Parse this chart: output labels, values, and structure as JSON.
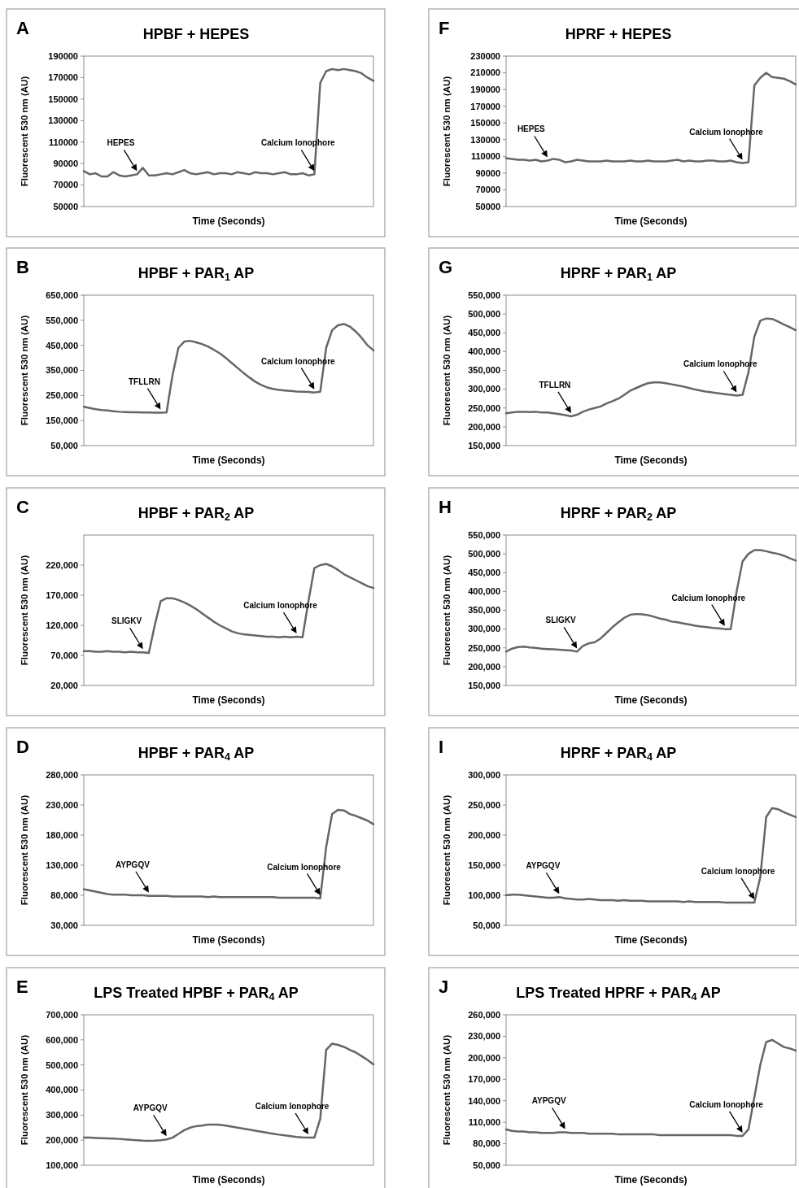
{
  "chart_data": [
    {
      "type": "line",
      "title": "HPBF + HEPES",
      "xlabel": "Time (Seconds)",
      "ylabel": "Fluorescent 530 nm (AU)",
      "annotations": [
        "A",
        "HEPES",
        "Calcium Ionophore"
      ],
      "tick_labels": "y",
      "categories": [
        null,
        null,
        null,
        null,
        null,
        null,
        null,
        null,
        null,
        null,
        null,
        null,
        null,
        null,
        null,
        null,
        null,
        null,
        null,
        null,
        null,
        null,
        null,
        null,
        null,
        null,
        null,
        null,
        null,
        null,
        null,
        null,
        null,
        null,
        null,
        null,
        null,
        null,
        null,
        null,
        null,
        null,
        null,
        null,
        null,
        null,
        null,
        null,
        null,
        null
      ],
      "ylim": [
        50000,
        190000
      ],
      "yticks": [
        50000,
        70000,
        90000,
        110000,
        130000,
        150000,
        170000,
        190000
      ],
      "series": [
        {
          "color": "#666666",
          "values": [
            83000,
            80000,
            81000,
            78000,
            78000,
            82000,
            79000,
            78000,
            79000,
            80000,
            86000,
            79000,
            79000,
            80000,
            81000,
            80000,
            82000,
            84000,
            81000,
            80000,
            81000,
            82000,
            80000,
            81000,
            81000,
            80000,
            82000,
            81000,
            80000,
            82000,
            81000,
            81000,
            80000,
            81000,
            82000,
            80000,
            80000,
            81000,
            79000,
            80000,
            165000,
            176000,
            178000,
            177000,
            178000,
            177000,
            176000,
            174000,
            170000,
            167000
          ]
        }
      ]
    },
    {
      "type": "line",
      "title": "HPBF + PAR$_{1}$ AP",
      "xlabel": "Time (Seconds)",
      "ylabel": "Fluorescent 530 nm (AU)",
      "annotations": [
        "B",
        "TFLLRN",
        "Calcium Ionophore"
      ],
      "tick_labels": "y",
      "categories": [
        null,
        null,
        null,
        null,
        null,
        null,
        null,
        null,
        null,
        null,
        null,
        null,
        null,
        null,
        null,
        null,
        null,
        null,
        null,
        null,
        null,
        null,
        null,
        null,
        null,
        null,
        null,
        null,
        null,
        null,
        null,
        null,
        null,
        null,
        null,
        null,
        null,
        null,
        null,
        null,
        null,
        null,
        null,
        null,
        null,
        null,
        null,
        null,
        null,
        null
      ],
      "ylim": [
        50000,
        650000
      ],
      "yticks": [
        {
          "value": 50000,
          "label": "50,000"
        },
        {
          "value": 150000,
          "label": "150,000"
        },
        {
          "value": 250000,
          "label": "250,000"
        },
        {
          "value": 350000,
          "label": "350,000"
        },
        {
          "value": 450000,
          "label": "450,000"
        },
        {
          "value": 550000,
          "label": "550,000"
        },
        {
          "value": 650000,
          "label": "650,000"
        }
      ],
      "series": [
        {
          "color": "#666666",
          "values": [
            205000,
            200000,
            195000,
            192000,
            190000,
            187000,
            185000,
            184000,
            183000,
            183000,
            182000,
            182000,
            181000,
            181000,
            182000,
            330000,
            440000,
            465000,
            468000,
            462000,
            455000,
            445000,
            432000,
            418000,
            400000,
            380000,
            360000,
            340000,
            322000,
            305000,
            292000,
            282000,
            276000,
            272000,
            270000,
            268000,
            266000,
            265000,
            264000,
            262000,
            265000,
            440000,
            510000,
            530000,
            535000,
            525000,
            505000,
            480000,
            450000,
            430000
          ]
        }
      ]
    },
    {
      "type": "line",
      "title": "HPBF + PAR$_{2}$ AP",
      "xlabel": "Time (Seconds)",
      "ylabel": "Fluorescent 530 nm (AU)",
      "annotations": [
        "C",
        "SLIGKV",
        "Calcium Ionophore"
      ],
      "tick_labels": "y",
      "categories": [
        null,
        null,
        null,
        null,
        null,
        null,
        null,
        null,
        null,
        null,
        null,
        null,
        null,
        null,
        null,
        null,
        null,
        null,
        null,
        null,
        null,
        null,
        null,
        null,
        null,
        null,
        null,
        null,
        null,
        null,
        null,
        null,
        null,
        null,
        null,
        null,
        null,
        null,
        null,
        null,
        null,
        null,
        null,
        null,
        null,
        null,
        null,
        null,
        null,
        null
      ],
      "ylim": [
        20000,
        270000
      ],
      "yticks": [
        {
          "value": 20000,
          "label": "20,000"
        },
        {
          "value": 70000,
          "label": "70,000"
        },
        {
          "value": 120000,
          "label": "120,000"
        },
        {
          "value": 170000,
          "label": "170,000"
        },
        {
          "value": 220000,
          "label": "220,000"
        }
      ],
      "series": [
        {
          "color": "#666666",
          "values": [
            77000,
            77000,
            76000,
            76000,
            77000,
            76000,
            76000,
            75000,
            76000,
            75000,
            75000,
            74000,
            120000,
            160000,
            165000,
            165000,
            162000,
            158000,
            153000,
            147000,
            140000,
            133000,
            126000,
            120000,
            115000,
            110000,
            107000,
            105000,
            104000,
            103000,
            102000,
            101000,
            101000,
            100000,
            101000,
            100000,
            101000,
            100000,
            160000,
            215000,
            220000,
            222000,
            218000,
            212000,
            205000,
            200000,
            195000,
            190000,
            185000,
            182000
          ]
        }
      ]
    },
    {
      "type": "line",
      "title": "HPBF + PAR$_{4}$ AP",
      "xlabel": "Time (Seconds)",
      "ylabel": "Fluorescent 530 nm (AU)",
      "annotations": [
        "D",
        "AYPGQV",
        "Calcium Ionophore"
      ],
      "tick_labels": "y",
      "categories": [
        null,
        null,
        null,
        null,
        null,
        null,
        null,
        null,
        null,
        null,
        null,
        null,
        null,
        null,
        null,
        null,
        null,
        null,
        null,
        null,
        null,
        null,
        null,
        null,
        null,
        null,
        null,
        null,
        null,
        null,
        null,
        null,
        null,
        null,
        null,
        null,
        null,
        null,
        null,
        null,
        null,
        null,
        null,
        null,
        null,
        null,
        null,
        null,
        null,
        null
      ],
      "ylim": [
        30000,
        280000
      ],
      "yticks": [
        {
          "value": 30000,
          "label": "30,000"
        },
        {
          "value": 80000,
          "label": "80,000"
        },
        {
          "value": 130000,
          "label": "130,000"
        },
        {
          "value": 180000,
          "label": "180,000"
        },
        {
          "value": 230000,
          "label": "230,000"
        },
        {
          "value": 280000,
          "label": "280,000"
        }
      ],
      "series": [
        {
          "color": "#666666",
          "values": [
            90000,
            88000,
            86000,
            84000,
            82000,
            81000,
            81000,
            81000,
            80000,
            80000,
            80000,
            79000,
            79000,
            79000,
            79000,
            78000,
            78000,
            78000,
            78000,
            78000,
            78000,
            77000,
            78000,
            77000,
            77000,
            77000,
            77000,
            77000,
            77000,
            77000,
            77000,
            77000,
            77000,
            76000,
            76000,
            76000,
            76000,
            76000,
            76000,
            76000,
            75000,
            160000,
            215000,
            222000,
            221000,
            215000,
            212000,
            208000,
            204000,
            198000
          ]
        }
      ]
    },
    {
      "type": "line",
      "title": "LPS Treated HPBF + PAR$_{4}$ AP",
      "xlabel": "Time (Seconds)",
      "ylabel": "Fluorescent 530 nm (AU)",
      "annotations": [
        "E",
        "AYPGQV",
        "Calcium Ionophore"
      ],
      "tick_labels": "y",
      "categories": [
        null,
        null,
        null,
        null,
        null,
        null,
        null,
        null,
        null,
        null,
        null,
        null,
        null,
        null,
        null,
        null,
        null,
        null,
        null,
        null,
        null,
        null,
        null,
        null,
        null,
        null,
        null,
        null,
        null,
        null,
        null,
        null,
        null,
        null,
        null,
        null,
        null,
        null,
        null,
        null,
        null,
        null,
        null,
        null,
        null,
        null,
        null,
        null,
        null,
        null
      ],
      "ylim": [
        100000,
        700000
      ],
      "yticks": [
        {
          "value": 100000,
          "label": "100,000"
        },
        {
          "value": 200000,
          "label": "200,000"
        },
        {
          "value": 300000,
          "label": "300,000"
        },
        {
          "value": 400000,
          "label": "400,000"
        },
        {
          "value": 500000,
          "label": "500,000"
        },
        {
          "value": 600000,
          "label": "600,000"
        },
        {
          "value": 700000,
          "label": "700,000"
        }
      ],
      "series": [
        {
          "color": "#666666",
          "values": [
            210000,
            210000,
            209000,
            208000,
            207000,
            206000,
            205000,
            203000,
            201000,
            200000,
            198000,
            197000,
            198000,
            200000,
            203000,
            210000,
            225000,
            240000,
            250000,
            256000,
            258000,
            262000,
            262000,
            261000,
            258000,
            254000,
            250000,
            246000,
            242000,
            238000,
            234000,
            230000,
            226000,
            222000,
            219000,
            216000,
            213000,
            211000,
            210000,
            210000,
            285000,
            560000,
            585000,
            580000,
            572000,
            560000,
            550000,
            535000,
            520000,
            502000
          ]
        }
      ]
    },
    {
      "type": "line",
      "title": "HPRF + HEPES",
      "xlabel": "Time (Seconds)",
      "ylabel": "Fluorescent 530 nm (AU)",
      "annotations": [
        "F",
        "HEPES",
        "Calcium Ionophore"
      ],
      "tick_labels": "y",
      "categories": [
        null,
        null,
        null,
        null,
        null,
        null,
        null,
        null,
        null,
        null,
        null,
        null,
        null,
        null,
        null,
        null,
        null,
        null,
        null,
        null,
        null,
        null,
        null,
        null,
        null,
        null,
        null,
        null,
        null,
        null,
        null,
        null,
        null,
        null,
        null,
        null,
        null,
        null,
        null,
        null,
        null,
        null,
        null,
        null,
        null,
        null,
        null,
        null,
        null,
        null
      ],
      "ylim": [
        50000,
        230000
      ],
      "yticks": [
        50000,
        70000,
        90000,
        110000,
        130000,
        150000,
        170000,
        190000,
        210000,
        230000
      ],
      "series": [
        {
          "color": "#666666",
          "values": [
            108000,
            107000,
            106000,
            106000,
            105000,
            106000,
            104000,
            105000,
            107000,
            106000,
            103000,
            104000,
            106000,
            105000,
            104000,
            104000,
            104000,
            105000,
            104000,
            104000,
            104000,
            105000,
            104000,
            104000,
            105000,
            104000,
            104000,
            104000,
            105000,
            106000,
            104000,
            105000,
            104000,
            104000,
            105000,
            105000,
            104000,
            104000,
            105000,
            103000,
            102000,
            103000,
            195000,
            204000,
            210000,
            205000,
            204000,
            203000,
            200000,
            196000
          ]
        }
      ]
    },
    {
      "type": "line",
      "title": "HPRF + PAR$_{1}$ AP",
      "xlabel": "Time (Seconds)",
      "ylabel": "Fluorescent 530 nm (AU)",
      "annotations": [
        "G",
        "TFLLRN",
        "Calcium Ionophore"
      ],
      "tick_labels": "y",
      "categories": [
        null,
        null,
        null,
        null,
        null,
        null,
        null,
        null,
        null,
        null,
        null,
        null,
        null,
        null,
        null,
        null,
        null,
        null,
        null,
        null,
        null,
        null,
        null,
        null,
        null,
        null,
        null,
        null,
        null,
        null,
        null,
        null,
        null,
        null,
        null,
        null,
        null,
        null,
        null,
        null,
        null,
        null,
        null,
        null,
        null,
        null,
        null,
        null,
        null,
        null
      ],
      "ylim": [
        150000,
        550000
      ],
      "yticks": [
        {
          "value": 150000,
          "label": "150,000"
        },
        {
          "value": 200000,
          "label": "200,000"
        },
        {
          "value": 250000,
          "label": "250,000"
        },
        {
          "value": 300000,
          "label": "300,000"
        },
        {
          "value": 350000,
          "label": "350,000"
        },
        {
          "value": 400000,
          "label": "400,000"
        },
        {
          "value": 450000,
          "label": "450,000"
        },
        {
          "value": 500000,
          "label": "500,000"
        },
        {
          "value": 550000,
          "label": "550,000"
        }
      ],
      "series": [
        {
          "color": "#666666",
          "values": [
            236000,
            238000,
            240000,
            240000,
            239000,
            240000,
            238000,
            238000,
            236000,
            234000,
            231000,
            228000,
            232000,
            240000,
            246000,
            250000,
            254000,
            262000,
            268000,
            275000,
            285000,
            296000,
            303000,
            310000,
            316000,
            318000,
            318000,
            316000,
            313000,
            310000,
            307000,
            303000,
            299000,
            296000,
            293000,
            291000,
            289000,
            287000,
            285000,
            283000,
            285000,
            345000,
            440000,
            482000,
            488000,
            487000,
            480000,
            472000,
            465000,
            457000
          ]
        }
      ]
    },
    {
      "type": "line",
      "title": "HPRF + PAR$_{2}$ AP",
      "xlabel": "Time (Seconds)",
      "ylabel": "Fluorescent 530 nm (AU)",
      "annotations": [
        "H",
        "SLIGKV",
        "Calcium Ionophore"
      ],
      "tick_labels": "y",
      "categories": [
        null,
        null,
        null,
        null,
        null,
        null,
        null,
        null,
        null,
        null,
        null,
        null,
        null,
        null,
        null,
        null,
        null,
        null,
        null,
        null,
        null,
        null,
        null,
        null,
        null,
        null,
        null,
        null,
        null,
        null,
        null,
        null,
        null,
        null,
        null,
        null,
        null,
        null,
        null,
        null,
        null,
        null,
        null,
        null,
        null,
        null,
        null,
        null,
        null,
        null
      ],
      "ylim": [
        150000,
        550000
      ],
      "yticks": [
        {
          "value": 150000,
          "label": "150,000"
        },
        {
          "value": 200000,
          "label": "200,000"
        },
        {
          "value": 250000,
          "label": "250,000"
        },
        {
          "value": 300000,
          "label": "300,000"
        },
        {
          "value": 350000,
          "label": "350,000"
        },
        {
          "value": 400000,
          "label": "400,000"
        },
        {
          "value": 450000,
          "label": "450,000"
        },
        {
          "value": 500000,
          "label": "500,000"
        },
        {
          "value": 550000,
          "label": "550,000"
        }
      ],
      "series": [
        {
          "color": "#666666",
          "values": [
            240000,
            248000,
            252000,
            253000,
            251000,
            250000,
            248000,
            247000,
            246000,
            245000,
            244000,
            243000,
            240000,
            255000,
            262000,
            265000,
            275000,
            290000,
            305000,
            318000,
            330000,
            338000,
            340000,
            339000,
            337000,
            333000,
            328000,
            325000,
            320000,
            318000,
            315000,
            312000,
            309000,
            307000,
            305000,
            303000,
            302000,
            300000,
            300000,
            400000,
            480000,
            500000,
            510000,
            510000,
            507000,
            503000,
            500000,
            495000,
            488000,
            482000
          ]
        }
      ]
    },
    {
      "type": "line",
      "title": "HPRF + PAR$_{4}$ AP",
      "xlabel": "Time (Seconds)",
      "ylabel": "Fluorescent 530 nm (AU)",
      "annotations": [
        "I",
        "AYPGQV",
        "Calcium Ionophore"
      ],
      "tick_labels": "y",
      "categories": [
        null,
        null,
        null,
        null,
        null,
        null,
        null,
        null,
        null,
        null,
        null,
        null,
        null,
        null,
        null,
        null,
        null,
        null,
        null,
        null,
        null,
        null,
        null,
        null,
        null,
        null,
        null,
        null,
        null,
        null,
        null,
        null,
        null,
        null,
        null,
        null,
        null,
        null,
        null,
        null,
        null,
        null,
        null,
        null,
        null,
        null,
        null,
        null,
        null,
        null
      ],
      "ylim": [
        50000,
        300000
      ],
      "yticks": [
        {
          "value": 50000,
          "label": "50,000"
        },
        {
          "value": 100000,
          "label": "100,000"
        },
        {
          "value": 150000,
          "label": "150,000"
        },
        {
          "value": 200000,
          "label": "200,000"
        },
        {
          "value": 250000,
          "label": "250,000"
        },
        {
          "value": 300000,
          "label": "300,000"
        }
      ],
      "series": [
        {
          "color": "#666666",
          "values": [
            100000,
            101000,
            101000,
            100000,
            99000,
            98000,
            97000,
            96000,
            96000,
            97000,
            95000,
            94000,
            93000,
            93000,
            94000,
            93000,
            92000,
            92000,
            92000,
            91000,
            92000,
            91000,
            91000,
            91000,
            90000,
            90000,
            90000,
            90000,
            90000,
            90000,
            89000,
            90000,
            89000,
            89000,
            89000,
            89000,
            89000,
            88000,
            88000,
            88000,
            88000,
            88000,
            88000,
            130000,
            230000,
            245000,
            243000,
            238000,
            234000,
            230000
          ]
        }
      ]
    },
    {
      "type": "line",
      "title": "LPS Treated HPRF + PAR$_{4}$ AP",
      "xlabel": "Time (Seconds)",
      "ylabel": "Fluorescent 530 nm (AU)",
      "annotations": [
        "J",
        "AYPGQV",
        "Calcium Ionophore"
      ],
      "tick_labels": "y",
      "categories": [
        null,
        null,
        null,
        null,
        null,
        null,
        null,
        null,
        null,
        null,
        null,
        null,
        null,
        null,
        null,
        null,
        null,
        null,
        null,
        null,
        null,
        null,
        null,
        null,
        null,
        null,
        null,
        null,
        null,
        null,
        null,
        null,
        null,
        null,
        null,
        null,
        null,
        null,
        null,
        null,
        null,
        null,
        null,
        null,
        null,
        null,
        null,
        null,
        null,
        null
      ],
      "ylim": [
        50000,
        260000
      ],
      "yticks": [
        {
          "value": 50000,
          "label": "50,000"
        },
        {
          "value": 80000,
          "label": "80,000"
        },
        {
          "value": 110000,
          "label": "110,000"
        },
        {
          "value": 140000,
          "label": "140,000"
        },
        {
          "value": 170000,
          "label": "170,000"
        },
        {
          "value": 200000,
          "label": "200,000"
        },
        {
          "value": 230000,
          "label": "230,000"
        },
        {
          "value": 260000,
          "label": "260,000"
        }
      ],
      "series": [
        {
          "color": "#666666",
          "values": [
            100000,
            98000,
            97000,
            97000,
            96000,
            96000,
            95000,
            95000,
            95000,
            96000,
            96000,
            95000,
            95000,
            95000,
            94000,
            94000,
            94000,
            94000,
            94000,
            93000,
            93000,
            93000,
            93000,
            93000,
            93000,
            93000,
            92000,
            92000,
            92000,
            92000,
            92000,
            92000,
            92000,
            92000,
            92000,
            92000,
            92000,
            92000,
            92000,
            91000,
            91000,
            100000,
            145000,
            190000,
            222000,
            225000,
            220000,
            215000,
            213000,
            210000
          ]
        }
      ]
    }
  ]
}
